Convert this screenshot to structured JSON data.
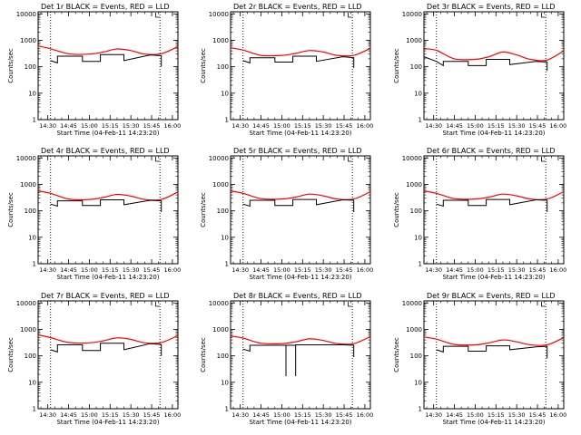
{
  "chart_data": [
    {
      "type": "line",
      "title": "Det 1r BLACK = Events, RED = LLD",
      "xlabel": "Start Time (04-Feb-11 14:23:20)",
      "ylabel": "Counts/sec",
      "ylog": true,
      "ylim": [
        1,
        12000
      ],
      "xlim": [
        "14:23",
        "16:04"
      ],
      "x_ticks": [
        "14:30",
        "14:45",
        "15:00",
        "15:15",
        "15:30",
        "15:45",
        "16:00"
      ],
      "y_ticks": [
        "1",
        "10",
        "100",
        "1000",
        "10000"
      ],
      "vlines": [
        "14:32",
        "15:51"
      ],
      "marker_time": "15:48",
      "series": [
        {
          "color": "#ff0000",
          "x": [
            "14:23",
            "14:32",
            "14:45",
            "15:00",
            "15:10",
            "15:20",
            "15:30",
            "15:40",
            "15:52",
            "16:04"
          ],
          "values": [
            610,
            480,
            310,
            300,
            360,
            470,
            410,
            300,
            310,
            580
          ]
        },
        {
          "color": "#000000",
          "x": [
            "14:32",
            "14:37",
            "14:37",
            "14:55",
            "14:55",
            "15:08",
            "15:08",
            "15:25",
            "15:25",
            "15:44",
            "15:52",
            "15:52"
          ],
          "values": [
            170,
            140,
            250,
            250,
            160,
            160,
            290,
            290,
            170,
            280,
            260,
            100
          ]
        }
      ]
    },
    {
      "type": "line",
      "title": "Det 2r BLACK = Events, RED = LLD",
      "xlabel": "Start Time (04-Feb-11 14:23:20)",
      "ylabel": "Counts/sec",
      "ylog": true,
      "ylim": [
        1,
        12000
      ],
      "xlim": [
        "14:23",
        "16:04"
      ],
      "x_ticks": [
        "14:30",
        "14:45",
        "15:00",
        "15:15",
        "15:30",
        "15:45",
        "16:00"
      ],
      "y_ticks": [
        "1",
        "10",
        "100",
        "1000",
        "10000"
      ],
      "vlines": [
        "14:32",
        "15:51"
      ],
      "marker_time": "15:48",
      "series": [
        {
          "color": "#ff0000",
          "x": [
            "14:23",
            "14:32",
            "14:45",
            "15:00",
            "15:10",
            "15:20",
            "15:30",
            "15:40",
            "15:52",
            "16:04"
          ],
          "values": [
            520,
            430,
            270,
            270,
            320,
            410,
            360,
            270,
            270,
            500
          ]
        },
        {
          "color": "#000000",
          "x": [
            "14:32",
            "14:37",
            "14:37",
            "14:55",
            "14:55",
            "15:08",
            "15:08",
            "15:25",
            "15:25",
            "15:44",
            "15:52",
            "15:52"
          ],
          "values": [
            170,
            140,
            220,
            220,
            150,
            150,
            250,
            250,
            160,
            240,
            220,
            90
          ]
        }
      ]
    },
    {
      "type": "line",
      "title": "Det 3r BLACK = Events, RED = LLD",
      "xlabel": "Start Time (04-Feb-11 14:23:20)",
      "ylabel": "Counts/sec",
      "ylog": true,
      "ylim": [
        1,
        12000
      ],
      "xlim": [
        "14:23",
        "16:04"
      ],
      "x_ticks": [
        "14:30",
        "14:45",
        "15:00",
        "15:15",
        "15:30",
        "15:45",
        "16:00"
      ],
      "y_ticks": [
        "1",
        "10",
        "100",
        "1000",
        "10000"
      ],
      "vlines": [
        "14:32",
        "15:51"
      ],
      "marker_time": "15:48",
      "series": [
        {
          "color": "#ff0000",
          "x": [
            "14:23",
            "14:32",
            "14:45",
            "15:00",
            "15:10",
            "15:20",
            "15:30",
            "15:40",
            "15:52",
            "16:04"
          ],
          "values": [
            480,
            420,
            200,
            190,
            240,
            360,
            280,
            190,
            180,
            400
          ]
        },
        {
          "color": "#000000",
          "x": [
            "14:23",
            "14:32",
            "14:37",
            "14:37",
            "14:55",
            "14:55",
            "15:08",
            "15:08",
            "15:25",
            "15:25",
            "15:44",
            "15:52",
            "15:52"
          ],
          "values": [
            240,
            160,
            110,
            160,
            160,
            110,
            110,
            190,
            190,
            120,
            160,
            150,
            70
          ]
        }
      ]
    },
    {
      "type": "line",
      "title": "Det 4r BLACK = Events, RED = LLD",
      "xlabel": "Start Time (04-Feb-11 14:23:20)",
      "ylabel": "Counts/sec",
      "ylog": true,
      "ylim": [
        1,
        12000
      ],
      "xlim": [
        "14:23",
        "16:04"
      ],
      "x_ticks": [
        "14:30",
        "14:45",
        "15:00",
        "15:15",
        "15:30",
        "15:45",
        "16:00"
      ],
      "y_ticks": [
        "1",
        "10",
        "100",
        "1000",
        "10000"
      ],
      "vlines": [
        "14:32",
        "15:51"
      ],
      "marker_time": "15:48",
      "series": [
        {
          "color": "#ff0000",
          "x": [
            "14:23",
            "14:32",
            "14:45",
            "15:00",
            "15:10",
            "15:20",
            "15:30",
            "15:40",
            "15:52",
            "16:04"
          ],
          "values": [
            560,
            460,
            280,
            270,
            320,
            420,
            360,
            270,
            270,
            520
          ]
        },
        {
          "color": "#000000",
          "x": [
            "14:32",
            "14:37",
            "14:37",
            "14:55",
            "14:55",
            "15:08",
            "15:08",
            "15:25",
            "15:25",
            "15:44",
            "15:52",
            "15:52"
          ],
          "values": [
            180,
            150,
            240,
            240,
            160,
            160,
            260,
            260,
            170,
            250,
            240,
            90
          ]
        }
      ]
    },
    {
      "type": "line",
      "title": "Det 5r BLACK = Events, RED = LLD",
      "xlabel": "Start Time (04-Feb-11 14:23:20)",
      "ylabel": "Counts/sec",
      "ylog": true,
      "ylim": [
        1,
        12000
      ],
      "xlim": [
        "14:23",
        "16:04"
      ],
      "x_ticks": [
        "14:30",
        "14:45",
        "15:00",
        "15:15",
        "15:30",
        "15:45",
        "16:00"
      ],
      "y_ticks": [
        "1",
        "10",
        "100",
        "1000",
        "10000"
      ],
      "vlines": [
        "14:32",
        "15:51"
      ],
      "marker_time": "15:48",
      "series": [
        {
          "color": "#ff0000",
          "x": [
            "14:23",
            "14:32",
            "14:45",
            "15:00",
            "15:10",
            "15:20",
            "15:30",
            "15:40",
            "15:52",
            "16:04"
          ],
          "values": [
            560,
            460,
            290,
            280,
            330,
            430,
            370,
            280,
            280,
            530
          ]
        },
        {
          "color": "#000000",
          "x": [
            "14:32",
            "14:37",
            "14:37",
            "14:55",
            "14:55",
            "15:08",
            "15:08",
            "15:25",
            "15:25",
            "15:44",
            "15:52",
            "15:52"
          ],
          "values": [
            180,
            150,
            250,
            250,
            160,
            160,
            270,
            270,
            170,
            260,
            250,
            90
          ]
        }
      ]
    },
    {
      "type": "line",
      "title": "Det 6r BLACK = Events, RED = LLD",
      "xlabel": "Start Time (04-Feb-11 14:23:20)",
      "ylabel": "Counts/sec",
      "ylog": true,
      "ylim": [
        1,
        12000
      ],
      "xlim": [
        "14:23",
        "16:04"
      ],
      "x_ticks": [
        "14:30",
        "14:45",
        "15:00",
        "15:15",
        "15:30",
        "15:45",
        "16:00"
      ],
      "y_ticks": [
        "1",
        "10",
        "100",
        "1000",
        "10000"
      ],
      "vlines": [
        "14:32",
        "15:51"
      ],
      "marker_time": "15:48",
      "series": [
        {
          "color": "#ff0000",
          "x": [
            "14:23",
            "14:32",
            "14:45",
            "15:00",
            "15:10",
            "15:20",
            "15:30",
            "15:40",
            "15:52",
            "16:04"
          ],
          "values": [
            560,
            460,
            290,
            280,
            330,
            430,
            370,
            280,
            280,
            530
          ]
        },
        {
          "color": "#000000",
          "x": [
            "14:32",
            "14:37",
            "14:37",
            "14:55",
            "14:55",
            "15:08",
            "15:08",
            "15:25",
            "15:25",
            "15:44",
            "15:52",
            "15:52"
          ],
          "values": [
            180,
            150,
            250,
            250,
            160,
            160,
            270,
            270,
            170,
            260,
            250,
            90
          ]
        }
      ]
    },
    {
      "type": "line",
      "title": "Det 7r BLACK = Events, RED = LLD",
      "xlabel": "Start Time (04-Feb-11 14:23:20)",
      "ylabel": "Counts/sec",
      "ylog": true,
      "ylim": [
        1,
        12000
      ],
      "xlim": [
        "14:23",
        "16:04"
      ],
      "x_ticks": [
        "14:30",
        "14:45",
        "15:00",
        "15:15",
        "15:30",
        "15:45",
        "16:00"
      ],
      "y_ticks": [
        "1",
        "10",
        "100",
        "1000",
        "10000"
      ],
      "vlines": [
        "14:32",
        "15:51"
      ],
      "marker_time": "15:48",
      "series": [
        {
          "color": "#ff0000",
          "x": [
            "14:23",
            "14:32",
            "14:45",
            "15:00",
            "15:10",
            "15:20",
            "15:30",
            "15:40",
            "15:52",
            "16:04"
          ],
          "values": [
            620,
            490,
            320,
            310,
            370,
            480,
            420,
            310,
            320,
            590
          ]
        },
        {
          "color": "#000000",
          "x": [
            "14:32",
            "14:37",
            "14:37",
            "14:55",
            "14:55",
            "15:08",
            "15:08",
            "15:25",
            "15:25",
            "15:44",
            "15:52",
            "15:52"
          ],
          "values": [
            170,
            140,
            260,
            260,
            160,
            160,
            300,
            300,
            170,
            290,
            270,
            100
          ]
        }
      ]
    },
    {
      "type": "line",
      "title": "Det 8r BLACK = Events, RED = LLD",
      "xlabel": "Start Time (04-Feb-11 14:23:20)",
      "ylabel": "Counts/sec",
      "ylog": true,
      "ylim": [
        1,
        12000
      ],
      "xlim": [
        "14:23",
        "16:04"
      ],
      "x_ticks": [
        "14:30",
        "14:45",
        "15:00",
        "15:15",
        "15:30",
        "15:45",
        "16:00"
      ],
      "y_ticks": [
        "1",
        "10",
        "100",
        "1000",
        "10000"
      ],
      "vlines": [
        "14:32",
        "15:51"
      ],
      "marker_time": "15:48",
      "series": [
        {
          "color": "#ff0000",
          "x": [
            "14:23",
            "14:32",
            "14:45",
            "15:00",
            "15:10",
            "15:20",
            "15:30",
            "15:40",
            "15:52",
            "16:04"
          ],
          "values": [
            560,
            470,
            300,
            290,
            340,
            440,
            380,
            290,
            290,
            540
          ]
        },
        {
          "color": "#000000",
          "x": [
            "14:32",
            "14:37",
            "14:37",
            "14:55",
            "15:03",
            "15:03",
            "15:03",
            "15:10",
            "15:10",
            "15:10",
            "15:25",
            "15:44",
            "15:52",
            "15:52"
          ],
          "values": [
            180,
            150,
            250,
            250,
            250,
            17,
            250,
            250,
            17,
            260,
            260,
            260,
            250,
            90
          ]
        }
      ]
    },
    {
      "type": "line",
      "title": "Det 9r BLACK = Events, RED = LLD",
      "xlabel": "Start Time (04-Feb-11 14:23:20)",
      "ylabel": "Counts/sec",
      "ylog": true,
      "ylim": [
        1,
        12000
      ],
      "xlim": [
        "14:23",
        "16:04"
      ],
      "x_ticks": [
        "14:30",
        "14:45",
        "15:00",
        "15:15",
        "15:30",
        "15:45",
        "16:00"
      ],
      "y_ticks": [
        "1",
        "10",
        "100",
        "1000",
        "10000"
      ],
      "vlines": [
        "14:32",
        "15:51"
      ],
      "marker_time": "15:48",
      "series": [
        {
          "color": "#ff0000",
          "x": [
            "14:23",
            "14:32",
            "14:45",
            "15:00",
            "15:10",
            "15:20",
            "15:30",
            "15:40",
            "15:52",
            "16:04"
          ],
          "values": [
            520,
            430,
            270,
            260,
            310,
            400,
            340,
            260,
            260,
            490
          ]
        },
        {
          "color": "#000000",
          "x": [
            "14:32",
            "14:37",
            "14:37",
            "14:55",
            "14:55",
            "15:08",
            "15:08",
            "15:25",
            "15:25",
            "15:44",
            "15:52",
            "15:52"
          ],
          "values": [
            170,
            140,
            230,
            230,
            150,
            150,
            240,
            240,
            170,
            220,
            230,
            80
          ]
        }
      ]
    }
  ]
}
